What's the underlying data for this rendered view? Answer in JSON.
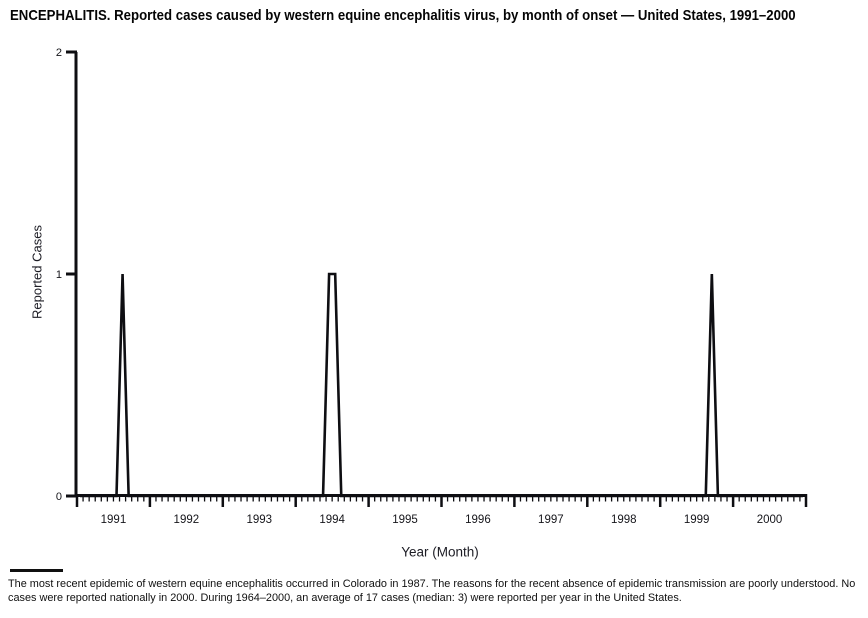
{
  "page": {
    "title": "ENCEPHALITIS. Reported cases caused by western equine encephalitis virus, by month of onset — United States, 1991–2000",
    "footnote": "The most recent epidemic of western equine encephalitis occurred in Colorado in 1987. The reasons for the recent absence of epidemic transmission are poorly understood. No cases were reported nationally in 2000. During 1964–2000, an average of 17 cases (median: 3) were reported per year in the United States."
  },
  "chart_data": {
    "type": "line",
    "title": "ENCEPHALITIS. Reported cases caused by western equine encephalitis virus, by month of onset — United States, 1991–2000",
    "xlabel": "Year (Month)",
    "ylabel": "Reported Cases",
    "ylim": [
      0,
      2
    ],
    "yticks": [
      0,
      1,
      2
    ],
    "years": [
      1991,
      1992,
      1993,
      1994,
      1995,
      1996,
      1997,
      1998,
      1999,
      2000
    ],
    "months_per_year": 12,
    "x_minor_tick": "month",
    "x_major_tick": "year-boundary",
    "grid": false,
    "legend": "none",
    "baseline_value": 0,
    "points_nonzero": [
      {
        "year": 1991,
        "month": 8,
        "value": 1
      },
      {
        "year": 1994,
        "month": 6,
        "value": 1
      },
      {
        "year": 1994,
        "month": 7,
        "value": 1
      },
      {
        "year": 1999,
        "month": 9,
        "value": 1
      }
    ],
    "line_color": "#0e0e12",
    "axis_color": "#0e0e12"
  }
}
